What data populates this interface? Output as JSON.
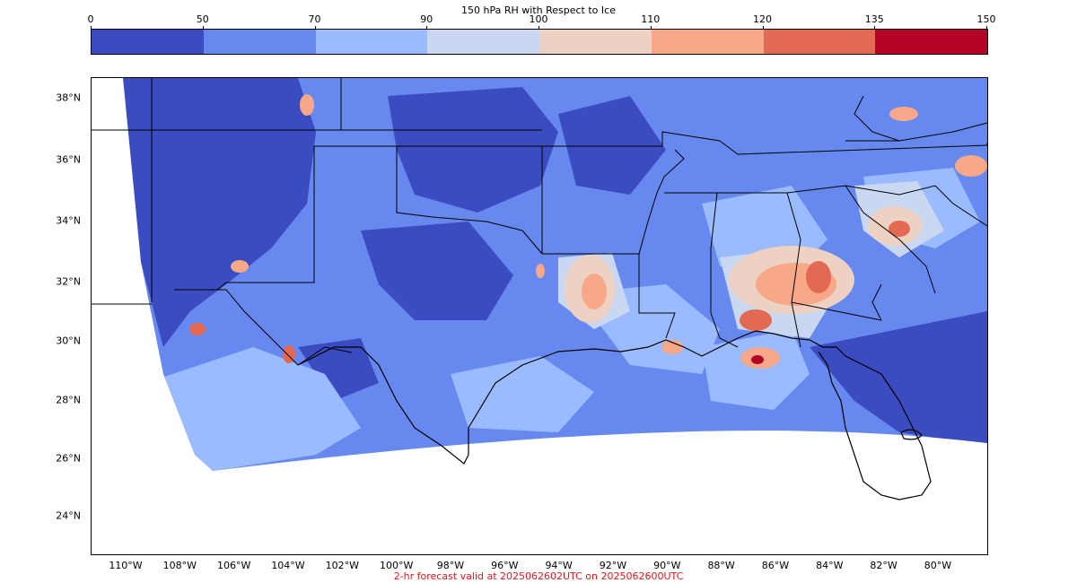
{
  "colorbar": {
    "title": "150 hPa RH with Respect to Ice",
    "ticks": [
      "0",
      "50",
      "70",
      "90",
      "100",
      "110",
      "120",
      "135",
      "150"
    ],
    "colors": [
      "#3b4cc0",
      "#6788ee",
      "#9abbff",
      "#c9d7f0",
      "#edd1c2",
      "#f7a889",
      "#e26952",
      "#b40426"
    ]
  },
  "map": {
    "lat_labels": [
      "38°N",
      "36°N",
      "34°N",
      "32°N",
      "30°N",
      "28°N",
      "26°N",
      "24°N"
    ],
    "lon_labels": [
      "110°W",
      "108°W",
      "106°W",
      "104°W",
      "102°W",
      "100°W",
      "98°W",
      "96°W",
      "94°W",
      "92°W",
      "90°W",
      "88°W",
      "86°W",
      "84°W",
      "82°W",
      "80°W"
    ]
  },
  "footer": "2-hr forecast valid at 2025062602UTC on 2025062600UTC"
}
